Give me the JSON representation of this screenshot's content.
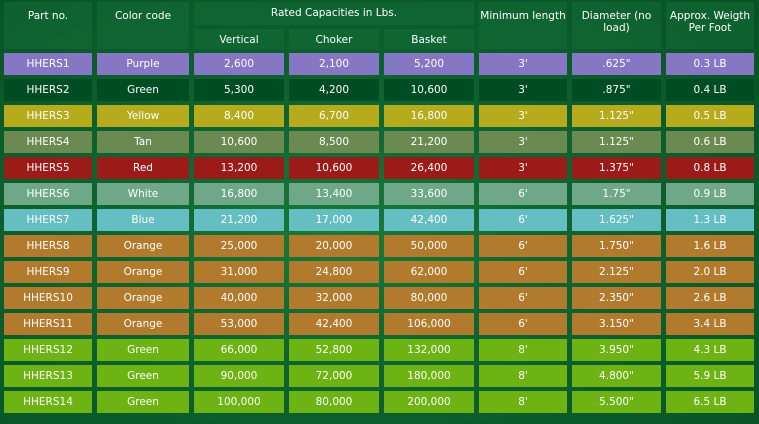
{
  "header": {
    "part_no": "Part no.",
    "color_code": "Color code",
    "rated_capacities": "Rated Capacities in Lbs.",
    "vertical": "Vertical",
    "choker": "Choker",
    "basket": "Basket",
    "min_length": "Minimum length",
    "diameter": "Diameter (no load)",
    "weight": "Approx. Weigth Per Foot"
  },
  "colors": {
    "Purple": "#8677c4",
    "Green_dark": "#004d24",
    "Yellow": "#b6ab1c",
    "Tan": "#6b8a52",
    "Red": "#9a1b17",
    "White": "#6ea889",
    "Blue": "#64bec2",
    "Orange": "#b27a2d",
    "Green_light": "#6cb313"
  },
  "rows": [
    {
      "part": "HHERS1",
      "color": "Purple",
      "vertical": "2,600",
      "choker": "2,100",
      "basket": "5,200",
      "min_length": "3'",
      "diameter": ".625\"",
      "weight": "0.3 LB",
      "bg": "#8677c4"
    },
    {
      "part": "HHERS2",
      "color": "Green",
      "vertical": "5,300",
      "choker": "4,200",
      "basket": "10,600",
      "min_length": "3'",
      "diameter": ".875\"",
      "weight": "0.4 LB",
      "bg": "#004d24"
    },
    {
      "part": "HHERS3",
      "color": "Yellow",
      "vertical": "8,400",
      "choker": "6,700",
      "basket": "16,800",
      "min_length": "3'",
      "diameter": "1.125\"",
      "weight": "0.5 LB",
      "bg": "#b6ab1c"
    },
    {
      "part": "HHERS4",
      "color": "Tan",
      "vertical": "10,600",
      "choker": "8,500",
      "basket": "21,200",
      "min_length": "3'",
      "diameter": "1.125\"",
      "weight": "0.6 LB",
      "bg": "#6b8a52"
    },
    {
      "part": "HHERS5",
      "color": "Red",
      "vertical": "13,200",
      "choker": "10,600",
      "basket": "26,400",
      "min_length": "3'",
      "diameter": "1.375\"",
      "weight": "0.8 LB",
      "bg": "#9a1b17"
    },
    {
      "part": "HHERS6",
      "color": "White",
      "vertical": "16,800",
      "choker": "13,400",
      "basket": "33,600",
      "min_length": "6'",
      "diameter": "1.75\"",
      "weight": "0.9 LB",
      "bg": "#6ea889"
    },
    {
      "part": "HHERS7",
      "color": "Blue",
      "vertical": "21,200",
      "choker": "17,000",
      "basket": "42,400",
      "min_length": "6'",
      "diameter": "1.625\"",
      "weight": "1.3 LB",
      "bg": "#64bec2"
    },
    {
      "part": "HHERS8",
      "color": "Orange",
      "vertical": "25,000",
      "choker": "20,000",
      "basket": "50,000",
      "min_length": "6'",
      "diameter": "1.750\"",
      "weight": "1.6 LB",
      "bg": "#b27a2d"
    },
    {
      "part": "HHERS9",
      "color": "Orange",
      "vertical": "31,000",
      "choker": "24,800",
      "basket": "62,000",
      "min_length": "6'",
      "diameter": "2.125\"",
      "weight": "2.0 LB",
      "bg": "#b27a2d"
    },
    {
      "part": "HHERS10",
      "color": "Orange",
      "vertical": "40,000",
      "choker": "32,000",
      "basket": "80,000",
      "min_length": "6'",
      "diameter": "2.350\"",
      "weight": "2.6 LB",
      "bg": "#b27a2d"
    },
    {
      "part": "HHERS11",
      "color": "Orange",
      "vertical": "53,000",
      "choker": "42,400",
      "basket": "106,000",
      "min_length": "6'",
      "diameter": "3.150\"",
      "weight": "3.4 LB",
      "bg": "#b27a2d"
    },
    {
      "part": "HHERS12",
      "color": "Green",
      "vertical": "66,000",
      "choker": "52,800",
      "basket": "132,000",
      "min_length": "8'",
      "diameter": "3.950\"",
      "weight": "4.3 LB",
      "bg": "#6cb313"
    },
    {
      "part": "HHERS13",
      "color": "Green",
      "vertical": "90,000",
      "choker": "72,000",
      "basket": "180,000",
      "min_length": "8'",
      "diameter": "4.800\"",
      "weight": "5.9 LB",
      "bg": "#6cb313"
    },
    {
      "part": "HHERS14",
      "color": "Green",
      "vertical": "100,000",
      "choker": "80,000",
      "basket": "200,000",
      "min_length": "8'",
      "diameter": "5.500\"",
      "weight": "6.5 LB",
      "bg": "#6cb313"
    }
  ]
}
